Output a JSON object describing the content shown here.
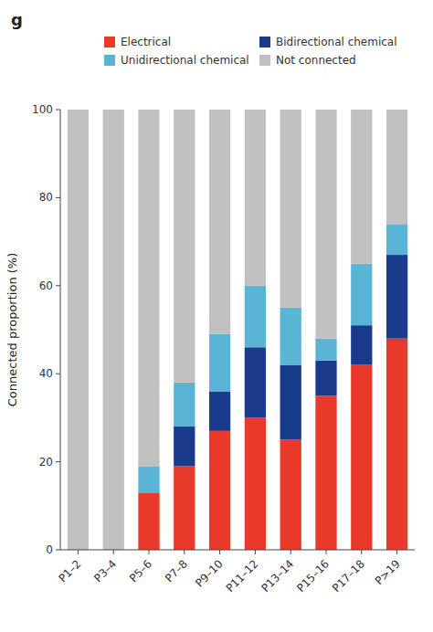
{
  "chart_data": {
    "type": "bar",
    "title": "g",
    "stacked": true,
    "categories": [
      "P1–2",
      "P3–4",
      "P5–6",
      "P7–8",
      "P9–10",
      "P11–12",
      "P13–14",
      "P15–16",
      "P17–18",
      "P>19"
    ],
    "series": [
      {
        "name": "Electrical",
        "color": "#e8392a",
        "values": [
          0,
          0,
          13,
          19,
          27,
          30,
          25,
          35,
          42,
          48
        ]
      },
      {
        "name": "Bidirectional chemical",
        "color": "#1a3a8c",
        "values": [
          0,
          0,
          0,
          9,
          9,
          16,
          17,
          8,
          9,
          19
        ]
      },
      {
        "name": "Unidirectional chemical",
        "color": "#5ab4d6",
        "values": [
          0,
          0,
          6,
          10,
          13,
          14,
          13,
          5,
          14,
          7
        ]
      },
      {
        "name": "Not connected",
        "color": "#c0c0c0",
        "values": [
          100,
          100,
          81,
          62,
          51,
          40,
          45,
          52,
          35,
          26
        ]
      }
    ],
    "ylabel": "Connected proportion (%)",
    "ylim": [
      0,
      100
    ],
    "yticks": [
      0,
      20,
      40,
      60,
      80,
      100
    ],
    "legend": "upper right"
  }
}
